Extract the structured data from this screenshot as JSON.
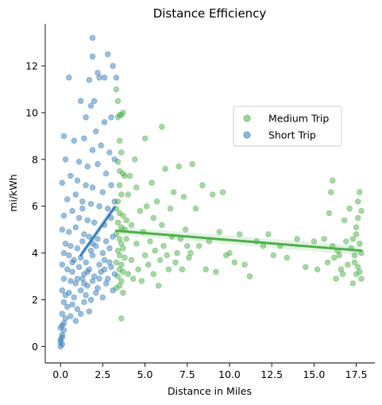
{
  "chart_data": {
    "type": "scatter",
    "title": "Distance Efficiency",
    "xlabel": "Distance in Miles",
    "ylabel": "mi/kWh",
    "xlim": [
      -0.9,
      18.6
    ],
    "ylim": [
      -0.7,
      13.8
    ],
    "x_ticks": [
      "0.0",
      "2.5",
      "5.0",
      "7.5",
      "10.0",
      "12.5",
      "15.0",
      "17.5"
    ],
    "x_tick_values": [
      0,
      2.5,
      5,
      7.5,
      10,
      12.5,
      15,
      17.5
    ],
    "y_ticks": [
      "0",
      "2",
      "4",
      "6",
      "8",
      "10",
      "12"
    ],
    "y_tick_values": [
      0,
      2,
      4,
      6,
      8,
      10,
      12
    ],
    "grid": false,
    "legend_position": "upper-right",
    "series": [
      {
        "name": "Medium Trip",
        "color": "#4daf4a",
        "points": [
          [
            3.3,
            11.0
          ],
          [
            3.4,
            10.5
          ],
          [
            3.5,
            9.9
          ],
          [
            3.6,
            9.9
          ],
          [
            3.7,
            10.0
          ],
          [
            3.4,
            9.8
          ],
          [
            3.5,
            8.8
          ],
          [
            3.6,
            8.3
          ],
          [
            3.4,
            7.9
          ],
          [
            3.5,
            7.5
          ],
          [
            3.7,
            7.4
          ],
          [
            3.8,
            7.3
          ],
          [
            3.5,
            6.9
          ],
          [
            3.6,
            6.5
          ],
          [
            3.4,
            6.2
          ],
          [
            3.3,
            5.9
          ],
          [
            3.5,
            5.7
          ],
          [
            3.7,
            5.6
          ],
          [
            3.4,
            5.3
          ],
          [
            3.6,
            5.1
          ],
          [
            3.8,
            5.0
          ],
          [
            3.3,
            4.8
          ],
          [
            3.5,
            4.6
          ],
          [
            3.6,
            4.4
          ],
          [
            3.7,
            4.2
          ],
          [
            3.4,
            4.1
          ],
          [
            3.5,
            3.9
          ],
          [
            3.8,
            3.8
          ],
          [
            3.3,
            3.6
          ],
          [
            3.6,
            3.5
          ],
          [
            3.5,
            3.3
          ],
          [
            3.7,
            3.2
          ],
          [
            3.4,
            3.0
          ],
          [
            3.6,
            2.8
          ],
          [
            3.5,
            2.6
          ],
          [
            3.3,
            2.5
          ],
          [
            3.7,
            2.3
          ],
          [
            3.6,
            1.2
          ],
          [
            3.9,
            5.4
          ],
          [
            3.9,
            4.6
          ],
          [
            4.0,
            3.1
          ],
          [
            4.0,
            6.5
          ],
          [
            4.1,
            7.3
          ],
          [
            4.2,
            5.2
          ],
          [
            4.2,
            3.7
          ],
          [
            4.3,
            2.9
          ],
          [
            4.4,
            8.0
          ],
          [
            4.5,
            6.8
          ],
          [
            4.5,
            4.4
          ],
          [
            4.6,
            3.3
          ],
          [
            4.7,
            5.8
          ],
          [
            4.8,
            2.8
          ],
          [
            4.9,
            4.9
          ],
          [
            5.0,
            3.9
          ],
          [
            5.0,
            8.9
          ],
          [
            5.1,
            6.0
          ],
          [
            5.2,
            3.5
          ],
          [
            5.3,
            4.5
          ],
          [
            5.4,
            7.0
          ],
          [
            5.5,
            5.5
          ],
          [
            5.5,
            3.1
          ],
          [
            5.6,
            4.1
          ],
          [
            5.7,
            6.2
          ],
          [
            5.8,
            2.6
          ],
          [
            5.9,
            3.7
          ],
          [
            6.0,
            9.4
          ],
          [
            6.0,
            5.2
          ],
          [
            6.1,
            4.3
          ],
          [
            6.2,
            7.6
          ],
          [
            6.3,
            3.9
          ],
          [
            6.4,
            3.3
          ],
          [
            6.5,
            5.9
          ],
          [
            6.6,
            4.7
          ],
          [
            6.7,
            6.6
          ],
          [
            6.8,
            3.6
          ],
          [
            6.9,
            4.0
          ],
          [
            7.0,
            7.7
          ],
          [
            7.1,
            4.6
          ],
          [
            7.2,
            3.3
          ],
          [
            7.3,
            6.4
          ],
          [
            7.4,
            5.0
          ],
          [
            7.5,
            4.3
          ],
          [
            7.6,
            3.8
          ],
          [
            7.7,
            4.0
          ],
          [
            7.8,
            7.8
          ],
          [
            8.0,
            5.9
          ],
          [
            8.2,
            4.3
          ],
          [
            8.4,
            6.9
          ],
          [
            8.6,
            3.3
          ],
          [
            8.8,
            4.5
          ],
          [
            9.0,
            6.5
          ],
          [
            9.2,
            3.2
          ],
          [
            9.4,
            4.9
          ],
          [
            9.6,
            6.6
          ],
          [
            9.8,
            3.9
          ],
          [
            10.0,
            4.0
          ],
          [
            10.3,
            3.6
          ],
          [
            10.6,
            4.8
          ],
          [
            10.9,
            3.5
          ],
          [
            11.2,
            3.0
          ],
          [
            11.6,
            4.5
          ],
          [
            12.0,
            4.3
          ],
          [
            12.3,
            4.8
          ],
          [
            12.6,
            3.9
          ],
          [
            13.0,
            4.3
          ],
          [
            13.4,
            3.8
          ],
          [
            14.0,
            4.6
          ],
          [
            14.5,
            3.4
          ],
          [
            15.0,
            4.5
          ],
          [
            15.2,
            3.3
          ],
          [
            15.6,
            4.6
          ],
          [
            15.9,
            5.7
          ],
          [
            16.0,
            6.6
          ],
          [
            16.1,
            7.1
          ],
          [
            16.2,
            3.8
          ],
          [
            16.3,
            2.9
          ],
          [
            16.4,
            4.1
          ],
          [
            16.6,
            3.3
          ],
          [
            16.8,
            5.4
          ],
          [
            16.9,
            4.5
          ],
          [
            17.0,
            3.5
          ],
          [
            17.1,
            5.9
          ],
          [
            17.2,
            4.2
          ],
          [
            17.3,
            2.7
          ],
          [
            17.4,
            3.9
          ],
          [
            17.5,
            5.1
          ],
          [
            17.6,
            3.4
          ],
          [
            17.7,
            6.6
          ],
          [
            17.8,
            4.0
          ],
          [
            17.8,
            5.8
          ],
          [
            17.7,
            3.2
          ],
          [
            17.6,
            6.2
          ],
          [
            17.5,
            4.8
          ],
          [
            17.4,
            3.6
          ],
          [
            17.7,
            4.4
          ],
          [
            17.8,
            2.9
          ],
          [
            17.6,
            5.5
          ],
          [
            17.5,
            3.1
          ],
          [
            17.3,
            4.6
          ],
          [
            16.7,
            3.1
          ],
          [
            16.5,
            3.9
          ],
          [
            15.8,
            3.6
          ],
          [
            16.1,
            4.3
          ]
        ]
      },
      {
        "name": "Short Trip",
        "color": "#377eb8",
        "points": [
          [
            1.9,
            13.2
          ],
          [
            1.9,
            12.4
          ],
          [
            2.2,
            11.7
          ],
          [
            2.8,
            12.5
          ],
          [
            3.1,
            12.0
          ],
          [
            2.6,
            11.5
          ],
          [
            2.3,
            11.5
          ],
          [
            1.7,
            11.4
          ],
          [
            0.5,
            11.5
          ],
          [
            1.2,
            10.5
          ],
          [
            1.8,
            10.3
          ],
          [
            2.0,
            10.5
          ],
          [
            3.3,
            11.5
          ],
          [
            1.5,
            9.8
          ],
          [
            2.1,
            9.2
          ],
          [
            2.6,
            9.6
          ],
          [
            3.0,
            9.8
          ],
          [
            0.2,
            9.0
          ],
          [
            0.8,
            8.8
          ],
          [
            1.4,
            8.9
          ],
          [
            1.9,
            8.4
          ],
          [
            2.4,
            8.6
          ],
          [
            2.9,
            8.3
          ],
          [
            0.3,
            8.0
          ],
          [
            1.1,
            7.9
          ],
          [
            1.6,
            7.7
          ],
          [
            2.2,
            7.8
          ],
          [
            2.7,
            7.4
          ],
          [
            3.2,
            8.0
          ],
          [
            0.6,
            7.3
          ],
          [
            1.0,
            7.1
          ],
          [
            1.5,
            6.9
          ],
          [
            1.9,
            6.8
          ],
          [
            2.5,
            6.6
          ],
          [
            3.0,
            6.9
          ],
          [
            0.1,
            7.0
          ],
          [
            0.4,
            6.3
          ],
          [
            0.9,
            6.5
          ],
          [
            1.3,
            6.2
          ],
          [
            1.8,
            6.1
          ],
          [
            2.3,
            6.0
          ],
          [
            2.8,
            5.9
          ],
          [
            3.2,
            6.2
          ],
          [
            0.2,
            5.6
          ],
          [
            0.7,
            5.8
          ],
          [
            1.1,
            5.5
          ],
          [
            1.6,
            5.4
          ],
          [
            2.0,
            5.3
          ],
          [
            2.6,
            5.2
          ],
          [
            3.0,
            5.5
          ],
          [
            0.1,
            5.0
          ],
          [
            0.5,
            4.9
          ],
          [
            0.9,
            5.1
          ],
          [
            1.4,
            4.8
          ],
          [
            1.7,
            4.7
          ],
          [
            2.2,
            4.6
          ],
          [
            2.7,
            4.5
          ],
          [
            3.1,
            4.7
          ],
          [
            0.3,
            4.4
          ],
          [
            0.6,
            4.3
          ],
          [
            1.0,
            4.2
          ],
          [
            1.3,
            4.5
          ],
          [
            1.8,
            4.1
          ],
          [
            2.1,
            4.3
          ],
          [
            2.5,
            4.0
          ],
          [
            2.9,
            4.2
          ],
          [
            0.2,
            4.0
          ],
          [
            0.5,
            3.9
          ],
          [
            0.8,
            3.7
          ],
          [
            1.2,
            3.8
          ],
          [
            1.5,
            3.6
          ],
          [
            1.9,
            3.9
          ],
          [
            2.3,
            3.5
          ],
          [
            2.6,
            3.7
          ],
          [
            3.0,
            3.4
          ],
          [
            0.1,
            3.5
          ],
          [
            0.4,
            3.3
          ],
          [
            0.7,
            3.2
          ],
          [
            1.1,
            3.4
          ],
          [
            1.4,
            3.1
          ],
          [
            1.7,
            3.3
          ],
          [
            2.0,
            3.0
          ],
          [
            2.4,
            3.2
          ],
          [
            2.8,
            2.9
          ],
          [
            3.2,
            3.1
          ],
          [
            0.2,
            2.9
          ],
          [
            0.6,
            2.8
          ],
          [
            0.9,
            2.7
          ],
          [
            1.3,
            2.9
          ],
          [
            1.6,
            2.6
          ],
          [
            1.9,
            2.8
          ],
          [
            2.2,
            2.5
          ],
          [
            2.7,
            2.7
          ],
          [
            3.1,
            2.4
          ],
          [
            0.1,
            2.4
          ],
          [
            0.3,
            2.2
          ],
          [
            0.5,
            2.3
          ],
          [
            0.8,
            2.1
          ],
          [
            1.2,
            2.4
          ],
          [
            1.5,
            2.2
          ],
          [
            1.8,
            2.0
          ],
          [
            2.1,
            2.3
          ],
          [
            2.5,
            2.1
          ],
          [
            0.2,
            1.9
          ],
          [
            0.4,
            1.7
          ],
          [
            0.7,
            1.8
          ],
          [
            1.0,
            1.6
          ],
          [
            1.4,
            1.9
          ],
          [
            1.7,
            1.5
          ],
          [
            0.1,
            1.4
          ],
          [
            0.3,
            1.2
          ],
          [
            0.6,
            1.3
          ],
          [
            0.9,
            1.1
          ],
          [
            1.2,
            1.4
          ],
          [
            0.1,
            0.9
          ],
          [
            0.2,
            0.7
          ],
          [
            0.1,
            0.5
          ],
          [
            0.0,
            0.3
          ],
          [
            0.1,
            0.1
          ],
          [
            0.0,
            0.0
          ],
          [
            0.0,
            0.2
          ],
          [
            0.1,
            0.4
          ],
          [
            0.0,
            0.8
          ],
          [
            0.2,
            1.0
          ],
          [
            1.3,
            5.9
          ],
          [
            1.6,
            3.2
          ],
          [
            2.3,
            2.9
          ],
          [
            2.9,
            3.6
          ],
          [
            1.0,
            2.9
          ],
          [
            0.7,
            3.6
          ],
          [
            1.9,
            4.4
          ],
          [
            2.6,
            3.3
          ],
          [
            1.4,
            2.7
          ]
        ]
      }
    ],
    "trendlines": [
      {
        "series": "Medium Trip",
        "x": [
          3.3,
          17.8
        ],
        "y": [
          4.95,
          4.1
        ]
      },
      {
        "series": "Short Trip",
        "x": [
          1.2,
          3.2
        ],
        "y": [
          3.9,
          5.95
        ]
      }
    ],
    "legend": [
      {
        "label": "Medium Trip",
        "color": "#4daf4a"
      },
      {
        "label": "Short Trip",
        "color": "#377eb8"
      }
    ]
  }
}
